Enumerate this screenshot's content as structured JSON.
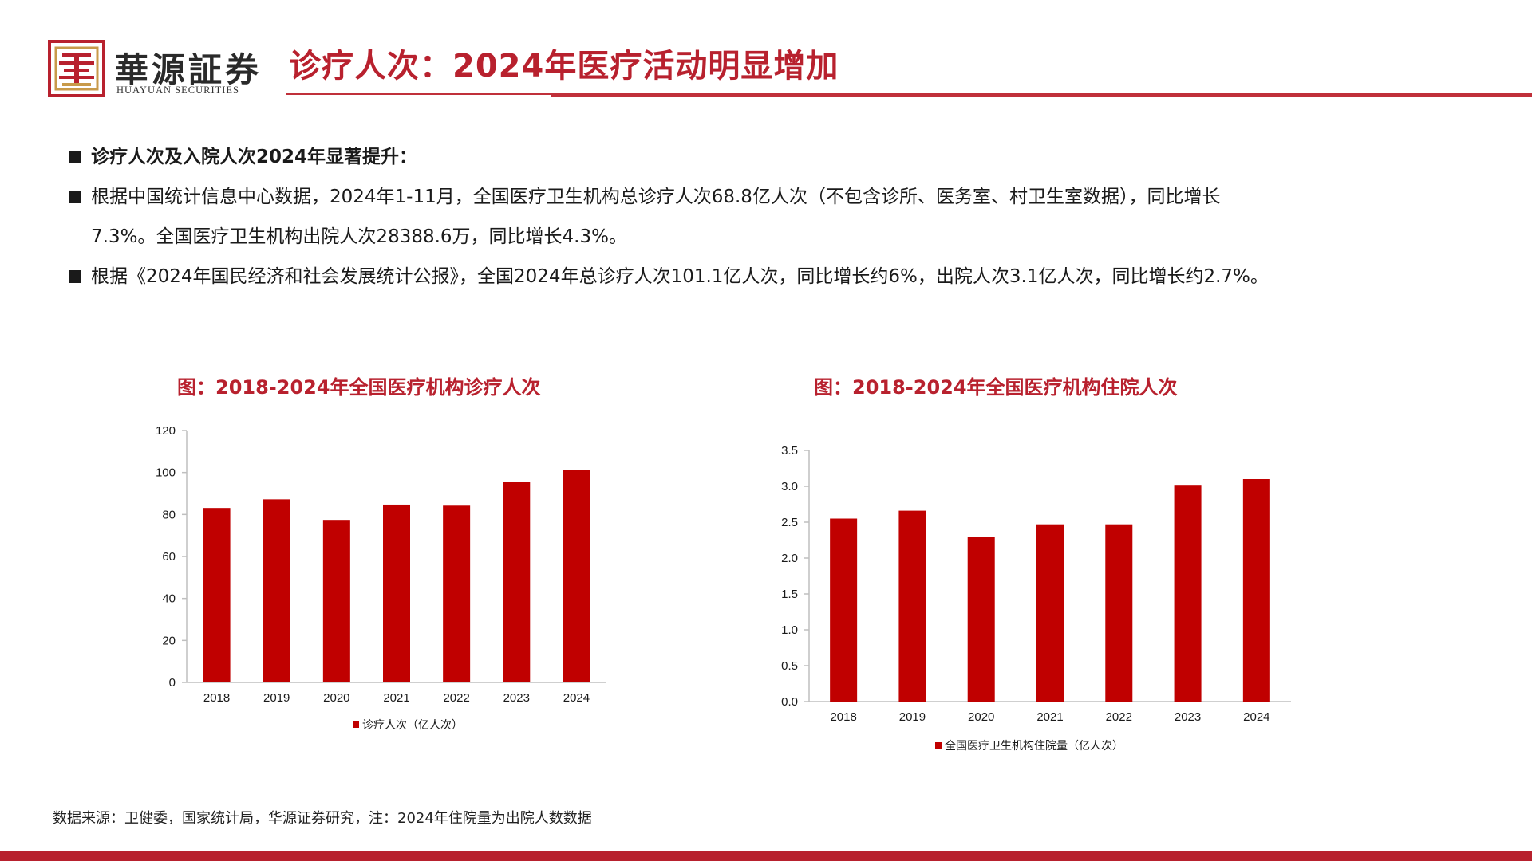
{
  "header": {
    "logo_cn": "華源証券",
    "logo_en": "HUAYUAN SECURITIES",
    "title": "诊疗人次：2024年医疗活动明显增加"
  },
  "bullets": [
    "诊疗人次及入院人次2024年显著提升：",
    "根据中国统计信息中心数据，2024年1-11月，全国医疗卫生机构总诊疗人次68.8亿人次（不包含诊所、医务室、村卫生室数据），同比增长",
    "7.3%。全国医疗卫生机构出院人次28388.6万，同比增长4.3%。",
    "根据《2024年国民经济和社会发展统计公报》，全国2024年总诊疗人次101.1亿人次，同比增长约6%，出院人次3.1亿人次，同比增长约2.7%。"
  ],
  "colors": {
    "accent": "#b8212e",
    "bar": "#c00000",
    "axis": "#bfbfbf"
  },
  "chart_data": [
    {
      "type": "bar",
      "title": "图：2018-2024年全国医疗机构诊疗人次",
      "categories": [
        "2018",
        "2019",
        "2020",
        "2021",
        "2022",
        "2023",
        "2024"
      ],
      "series": [
        {
          "name": "诊疗人次（亿人次）",
          "values": [
            83.1,
            87.2,
            77.4,
            84.7,
            84.2,
            95.5,
            101.1
          ]
        }
      ],
      "ylim": [
        0,
        120
      ],
      "yticks": [
        "0",
        "20",
        "40",
        "60",
        "80",
        "100",
        "120"
      ],
      "ytick_values": [
        0,
        20,
        40,
        60,
        80,
        100,
        120
      ],
      "xlabel": "",
      "ylabel": "",
      "legend": "bottom",
      "grid": false
    },
    {
      "type": "bar",
      "title": "图：2018-2024年全国医疗机构住院人次",
      "categories": [
        "2018",
        "2019",
        "2020",
        "2021",
        "2022",
        "2023",
        "2024"
      ],
      "series": [
        {
          "name": "全国医疗卫生机构住院量（亿人次）",
          "values": [
            2.55,
            2.66,
            2.3,
            2.47,
            2.47,
            3.02,
            3.1
          ]
        }
      ],
      "ylim": [
        0,
        3.5
      ],
      "yticks": [
        "0.0",
        "0.5",
        "1.0",
        "1.5",
        "2.0",
        "2.5",
        "3.0",
        "3.5"
      ],
      "ytick_values": [
        0,
        0.5,
        1.0,
        1.5,
        2.0,
        2.5,
        3.0,
        3.5
      ],
      "xlabel": "",
      "ylabel": "",
      "legend": "bottom",
      "grid": false
    }
  ],
  "source": "数据来源：卫健委，国家统计局，华源证券研究，注：2024年住院量为出院人数数据"
}
